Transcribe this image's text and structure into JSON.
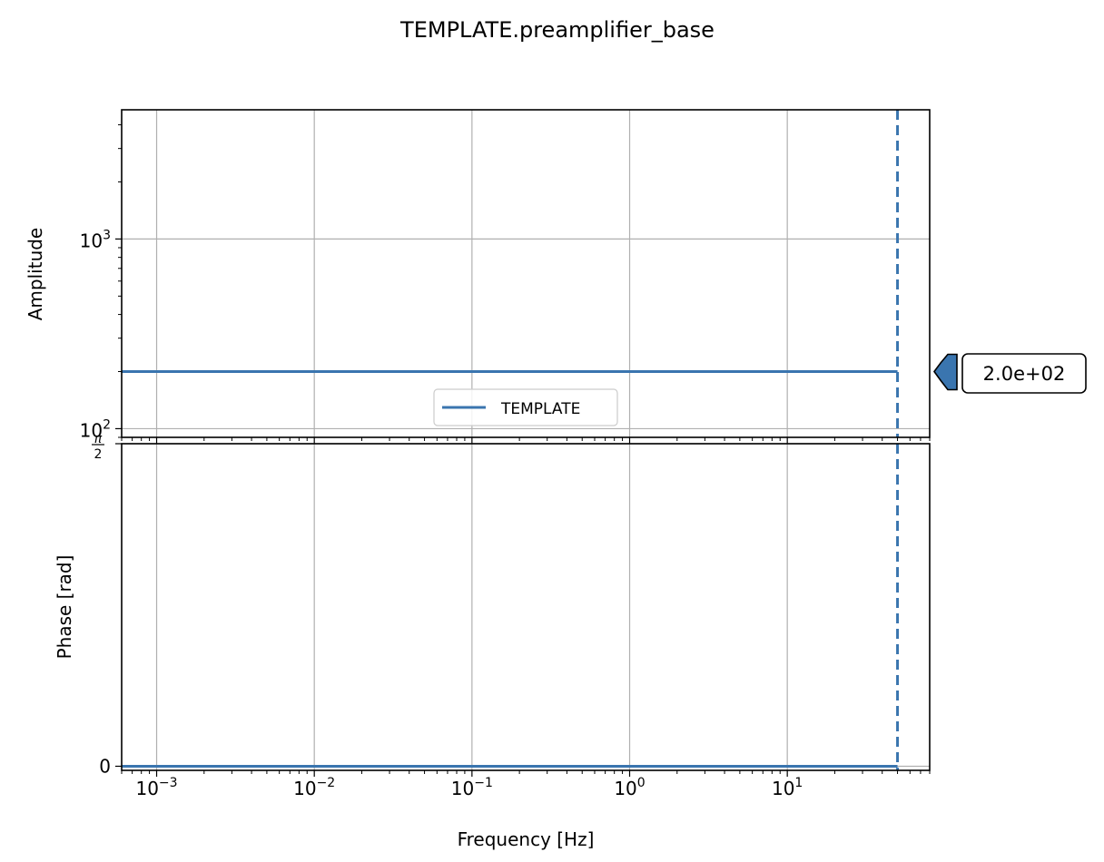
{
  "title": "TEMPLATE.preamplifier_base",
  "chart_data": [
    {
      "type": "line",
      "panel": "amplitude",
      "ylabel": "Amplitude",
      "xscale": "log",
      "yscale": "log",
      "xlim": [
        0.0006,
        80
      ],
      "ylim": [
        90,
        4800
      ],
      "grid": true,
      "y_ticks": [
        {
          "value": 100,
          "base": "10",
          "exp": "2"
        },
        {
          "value": 1000,
          "base": "10",
          "exp": "3"
        }
      ],
      "series": [
        {
          "name": "TEMPLATE",
          "x": [
            0.0006,
            50
          ],
          "y": [
            200,
            200
          ],
          "color": "#3a75af"
        }
      ],
      "vline": {
        "x": 50,
        "style": "dashed",
        "color": "#3a75af"
      },
      "legend": {
        "position": "lower-center",
        "entries": [
          "TEMPLATE"
        ]
      },
      "annotation": {
        "label": "2.0e+02",
        "y": 200
      }
    },
    {
      "type": "line",
      "panel": "phase",
      "ylabel": "Phase [rad]",
      "xlabel": "Frequency [Hz]",
      "xscale": "log",
      "xlim": [
        0.0006,
        80
      ],
      "ylim": [
        -0.02,
        1.5708
      ],
      "grid": true,
      "y_ticks": [
        {
          "value": 0,
          "label": "0"
        },
        {
          "value": 1.5708,
          "label_num": "π",
          "label_den": "2"
        }
      ],
      "x_ticks": [
        {
          "value": 0.001,
          "base": "10",
          "exp": "−3"
        },
        {
          "value": 0.01,
          "base": "10",
          "exp": "−2"
        },
        {
          "value": 0.1,
          "base": "10",
          "exp": "−1"
        },
        {
          "value": 1,
          "base": "10",
          "exp": "0"
        },
        {
          "value": 10,
          "base": "10",
          "exp": "1"
        }
      ],
      "series": [
        {
          "name": "TEMPLATE",
          "x": [
            0.0006,
            50
          ],
          "y": [
            0,
            0
          ],
          "color": "#3a75af"
        }
      ],
      "vline": {
        "x": 50,
        "style": "dashed",
        "color": "#3a75af"
      }
    }
  ]
}
